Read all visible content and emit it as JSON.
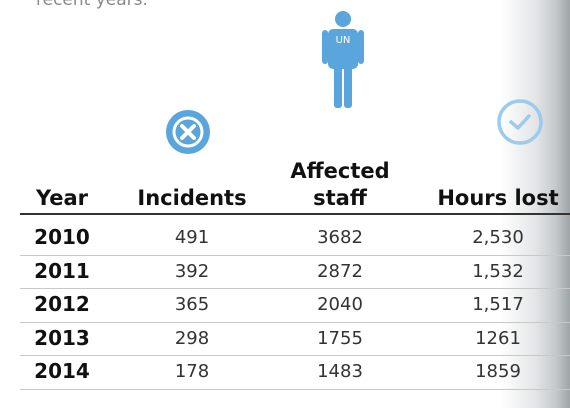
{
  "intro": "recent years.",
  "icon_label": "UN",
  "table": {
    "header": [
      "Year",
      "Incidents",
      "Affected staff",
      "Hours lost"
    ],
    "rows": [
      [
        "2010",
        "491",
        "3682",
        "2,530"
      ],
      [
        "2011",
        "392",
        "2872",
        "1,532"
      ],
      [
        "2012",
        "365",
        "2040",
        "1,517"
      ],
      [
        "2013",
        "298",
        "1755",
        "1261"
      ],
      [
        "2014",
        "178",
        "1483",
        "1859"
      ]
    ]
  }
}
